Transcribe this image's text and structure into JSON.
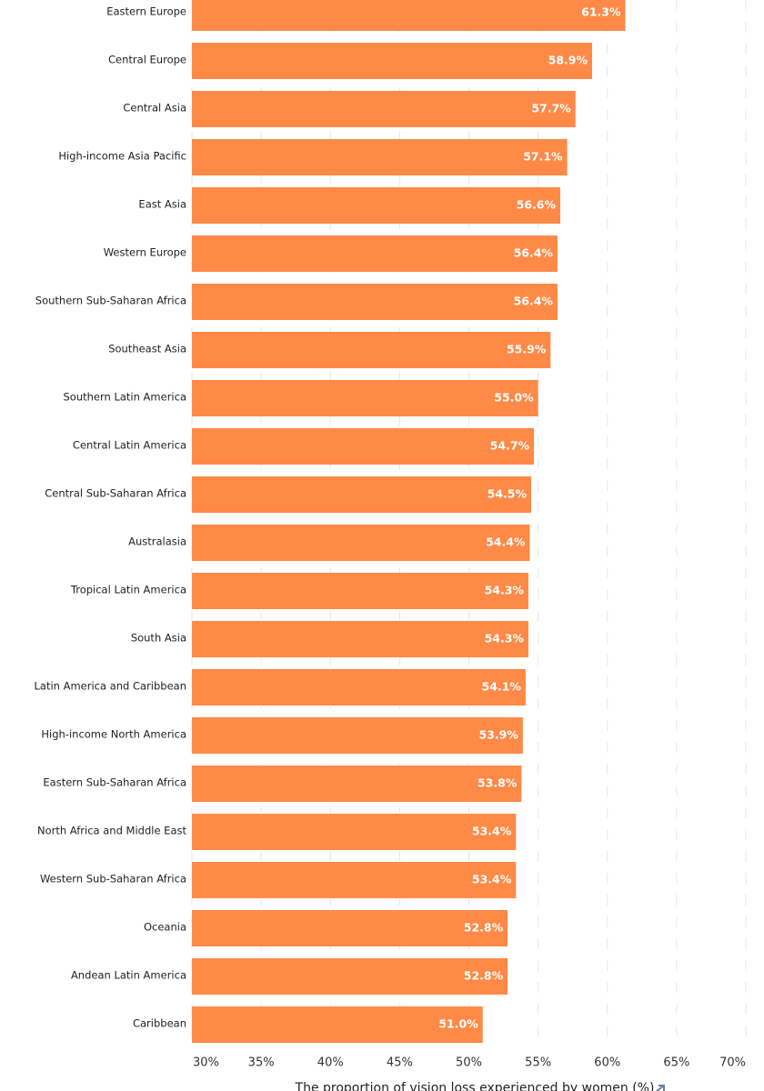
{
  "chart_data": {
    "type": "bar",
    "orientation": "horizontal",
    "x_label": "The proportion of vision loss experienced by women (%)",
    "categories": [
      "Eastern Europe",
      "Central Europe",
      "Central Asia",
      "High-income Asia Pacific",
      "East Asia",
      "Western Europe",
      "Southern Sub-Saharan Africa",
      "Southeast Asia",
      "Southern Latin America",
      "Central Latin America",
      "Central Sub-Saharan Africa",
      "Australasia",
      "Tropical Latin America",
      "South Asia",
      "Latin America and Caribbean",
      "High-income North America",
      "Eastern Sub-Saharan Africa",
      "North Africa and Middle East",
      "Western Sub-Saharan Africa",
      "Oceania",
      "Andean Latin America",
      "Caribbean"
    ],
    "values": [
      61.3,
      58.9,
      57.7,
      57.1,
      56.6,
      56.4,
      56.4,
      55.9,
      55.0,
      54.7,
      54.5,
      54.4,
      54.3,
      54.3,
      54.1,
      53.9,
      53.8,
      53.4,
      53.4,
      52.8,
      52.8,
      51.0
    ],
    "value_labels": [
      "61.3%",
      "58.9%",
      "57.7%",
      "57.1%",
      "56.6%",
      "56.4%",
      "56.4%",
      "55.9%",
      "55.0%",
      "54.7%",
      "54.5%",
      "54.4%",
      "54.3%",
      "54.3%",
      "54.1%",
      "53.9%",
      "53.8%",
      "53.4%",
      "53.4%",
      "52.8%",
      "52.8%",
      "51.0%"
    ],
    "color": "#ff8a47",
    "xlim": [
      30,
      70
    ],
    "xticks": [
      {
        "value": 30,
        "label": "30%"
      },
      {
        "value": 35,
        "label": "35%"
      },
      {
        "value": 40,
        "label": "40%"
      },
      {
        "value": 45,
        "label": "45%"
      },
      {
        "value": 50,
        "label": "50%"
      },
      {
        "value": 55,
        "label": "55%"
      },
      {
        "value": 60,
        "label": "60%"
      },
      {
        "value": 65,
        "label": "65%"
      },
      {
        "value": 70,
        "label": "70%"
      }
    ],
    "grid": true
  }
}
